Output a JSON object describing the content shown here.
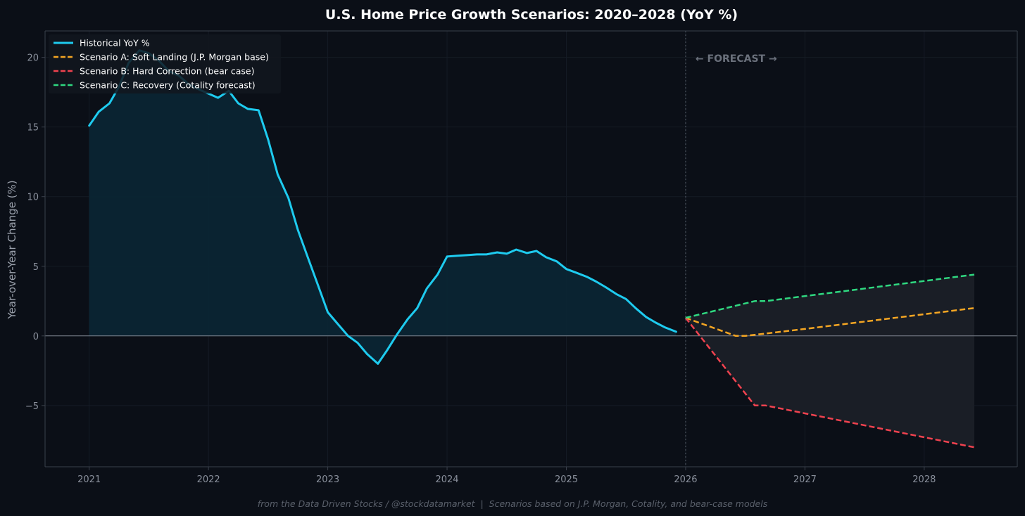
{
  "chart_data": {
    "type": "line",
    "title": "U.S. Home Price Growth Scenarios: 2020–2028 (YoY %)",
    "xlabel": "",
    "ylabel": "Year-over-Year Change (%)",
    "xlim": [
      2020.63,
      2028.78
    ],
    "ylim": [
      -9.4,
      21.9
    ],
    "x_ticks": [
      2021,
      2022,
      2023,
      2024,
      2025,
      2026,
      2027,
      2028
    ],
    "x_tick_labels": [
      "2021",
      "2022",
      "2023",
      "2024",
      "2025",
      "2026",
      "2027",
      "2028"
    ],
    "y_ticks": [
      -5,
      0,
      5,
      10,
      15,
      20
    ],
    "y_tick_labels": [
      "−5",
      "0",
      "5",
      "10",
      "15",
      "20"
    ],
    "forecast_start": 2026.0,
    "forecast_label": "← FORECAST →",
    "legend_position": "top-left",
    "footer": "from the Data Driven Stocks / @stockdatamarket  |  Scenarios based on J.P. Morgan, Cotality, and bear-case models",
    "series": [
      {
        "name": "Historical YoY %",
        "color": "#1ecbef",
        "style": "solid",
        "points": [
          [
            2021.0,
            15.1
          ],
          [
            2021.08,
            16.1
          ],
          [
            2021.17,
            16.7
          ],
          [
            2021.25,
            17.9
          ],
          [
            2021.33,
            19.6
          ],
          [
            2021.42,
            20.5
          ],
          [
            2021.5,
            20.3
          ],
          [
            2021.58,
            19.8
          ],
          [
            2021.67,
            19.0
          ],
          [
            2021.75,
            18.7
          ],
          [
            2021.83,
            18.1
          ],
          [
            2021.92,
            17.7
          ],
          [
            2022.0,
            17.4
          ],
          [
            2022.08,
            17.1
          ],
          [
            2022.17,
            17.6
          ],
          [
            2022.25,
            16.7
          ],
          [
            2022.33,
            16.3
          ],
          [
            2022.42,
            16.2
          ],
          [
            2022.5,
            14.1
          ],
          [
            2022.58,
            11.6
          ],
          [
            2022.67,
            9.9
          ],
          [
            2022.75,
            7.6
          ],
          [
            2022.83,
            5.7
          ],
          [
            2022.92,
            3.6
          ],
          [
            2023.0,
            1.7
          ],
          [
            2023.08,
            0.9
          ],
          [
            2023.17,
            0.0
          ],
          [
            2023.25,
            -0.5
          ],
          [
            2023.33,
            -1.3
          ],
          [
            2023.42,
            -2.0
          ],
          [
            2023.5,
            -1.0
          ],
          [
            2023.58,
            0.1
          ],
          [
            2023.67,
            1.2
          ],
          [
            2023.75,
            2.0
          ],
          [
            2023.83,
            3.4
          ],
          [
            2023.92,
            4.4
          ],
          [
            2024.0,
            5.7
          ],
          [
            2024.08,
            5.75
          ],
          [
            2024.17,
            5.8
          ],
          [
            2024.25,
            5.85
          ],
          [
            2024.33,
            5.85
          ],
          [
            2024.42,
            6.0
          ],
          [
            2024.5,
            5.9
          ],
          [
            2024.58,
            6.2
          ],
          [
            2024.67,
            5.95
          ],
          [
            2024.75,
            6.1
          ],
          [
            2024.83,
            5.65
          ],
          [
            2024.92,
            5.35
          ],
          [
            2025.0,
            4.8
          ],
          [
            2025.08,
            4.55
          ],
          [
            2025.17,
            4.25
          ],
          [
            2025.25,
            3.9
          ],
          [
            2025.33,
            3.5
          ],
          [
            2025.42,
            3.0
          ],
          [
            2025.5,
            2.65
          ],
          [
            2025.58,
            2.0
          ],
          [
            2025.67,
            1.35
          ],
          [
            2025.75,
            0.95
          ],
          [
            2025.83,
            0.6
          ],
          [
            2025.92,
            0.3
          ]
        ]
      },
      {
        "name": "Scenario A: Soft Landing (J.P. Morgan base)",
        "color": "#f5a623",
        "style": "dashed",
        "points": [
          [
            2026.0,
            1.3
          ],
          [
            2026.42,
            0.0
          ],
          [
            2026.5,
            0.0
          ],
          [
            2027.0,
            0.5
          ],
          [
            2028.42,
            2.0
          ]
        ]
      },
      {
        "name": "Scenario B: Hard Correction (bear case)",
        "color": "#f0424f",
        "style": "dashed",
        "points": [
          [
            2026.0,
            1.3
          ],
          [
            2026.58,
            -5.0
          ],
          [
            2026.67,
            -5.0
          ],
          [
            2028.42,
            -8.0
          ]
        ]
      },
      {
        "name": "Scenario C: Recovery (Cotality forecast)",
        "color": "#2fd880",
        "style": "dashed",
        "points": [
          [
            2026.0,
            1.3
          ],
          [
            2026.58,
            2.5
          ],
          [
            2026.67,
            2.5
          ],
          [
            2028.42,
            4.4
          ]
        ]
      }
    ],
    "colors": {
      "background": "#0b0f17",
      "axes": "#3a404b",
      "grid": "#151b25",
      "zero_line": "#7e848f",
      "forecast_band": "#1a1e26",
      "historical_fill": "#0b2533"
    }
  }
}
